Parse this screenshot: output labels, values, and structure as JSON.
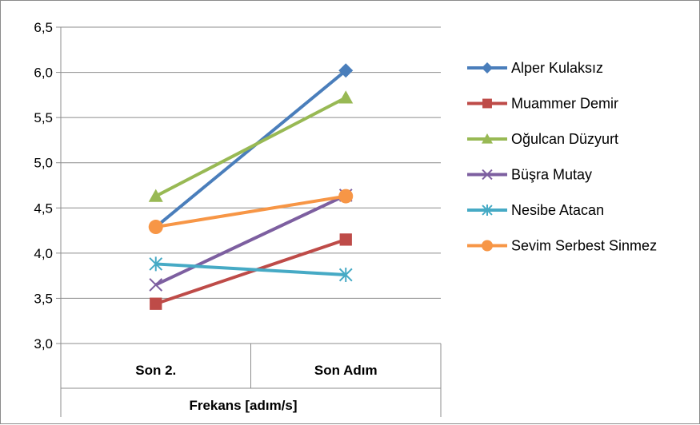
{
  "chart_data": {
    "type": "line",
    "title": "",
    "xlabel": "Frekans [adım/s]",
    "ylabel": "",
    "ylim": [
      3.0,
      6.5
    ],
    "y_ticks": [
      "3,0",
      "3,5",
      "4,0",
      "4,5",
      "5,0",
      "5,5",
      "6,0",
      "6,5"
    ],
    "y_tick_values": [
      3.0,
      3.5,
      4.0,
      4.5,
      5.0,
      5.5,
      6.0,
      6.5
    ],
    "categories": [
      "Son 2.",
      "Son Adım"
    ],
    "grid": "horizontal",
    "legend_position": "right",
    "series": [
      {
        "name": "Alper Kulaksız",
        "values": [
          4.29,
          6.02
        ],
        "color": "#4a7ebb",
        "marker": "diamond"
      },
      {
        "name": "Muammer Demir",
        "values": [
          3.44,
          4.15
        ],
        "color": "#be4b48",
        "marker": "square"
      },
      {
        "name": "Oğulcan Düzyurt",
        "values": [
          4.63,
          5.72
        ],
        "color": "#98b954",
        "marker": "triangle"
      },
      {
        "name": "Büşra Mutay",
        "values": [
          3.65,
          4.64
        ],
        "color": "#7d5fa0",
        "marker": "x"
      },
      {
        "name": "Nesibe Atacan",
        "values": [
          3.88,
          3.76
        ],
        "color": "#46aac5",
        "marker": "star"
      },
      {
        "name": "Sevim Serbest Sinmez",
        "values": [
          4.29,
          4.63
        ],
        "color": "#f79646",
        "marker": "circle"
      }
    ]
  }
}
